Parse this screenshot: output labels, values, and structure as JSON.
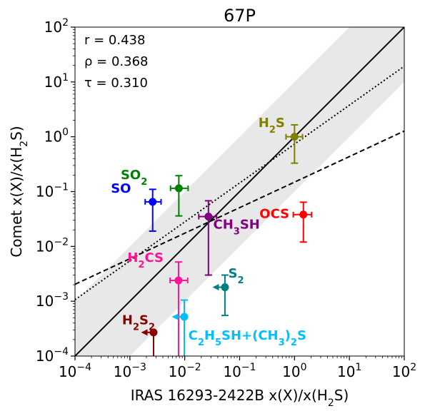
{
  "chart_data": {
    "type": "scatter",
    "title": "67P",
    "xlabel": {
      "pre": "IRAS 16293-2422B x(X)/x(H",
      "sub": "2",
      "post": "S)"
    },
    "ylabel": {
      "pre": "Comet x(X)/x(H",
      "sub": "2",
      "post": "S)"
    },
    "x_scale": "log",
    "y_scale": "log",
    "xlim": [
      0.0001,
      100
    ],
    "ylim": [
      0.0001,
      100
    ],
    "grid": false,
    "tick_labels": [
      {
        "base": "10",
        "exp": "−4",
        "value": 0.0001
      },
      {
        "base": "10",
        "exp": "−3",
        "value": 0.001
      },
      {
        "base": "10",
        "exp": "−2",
        "value": 0.01
      },
      {
        "base": "10",
        "exp": "−1",
        "value": 0.1
      },
      {
        "base": "10",
        "exp": "0",
        "value": 1
      },
      {
        "base": "10",
        "exp": "1",
        "value": 10
      },
      {
        "base": "10",
        "exp": "2",
        "value": 100
      }
    ],
    "stats": [
      "r = 0.438",
      "ρ = 0.368",
      "τ = 0.310"
    ],
    "band": {
      "factor": 10,
      "color": "#e8e8e8"
    },
    "lines": [
      {
        "style": "solid",
        "slope": 1,
        "intercept_log": 0
      },
      {
        "style": "dotted",
        "slope": 0.71,
        "intercept_log": -0.133
      },
      {
        "style": "dashed",
        "slope": 0.466,
        "intercept_log": -0.827
      }
    ],
    "points": [
      {
        "label": [
          [
            "H",
            false
          ],
          [
            "2",
            true
          ],
          [
            "S",
            false
          ]
        ],
        "color": "#808000",
        "x": 1.0,
        "y": 1.0,
        "xerr_lo": 0.7,
        "xerr_hi": 1.4,
        "yerr_lo": 0.33,
        "yerr_hi": 1.65,
        "upper_x": false,
        "lx": 0.22,
        "ly": 1.5
      },
      {
        "label": [
          [
            "SO",
            false
          ],
          [
            "2",
            true
          ]
        ],
        "color": "#008000",
        "x": 0.0078,
        "y": 0.115,
        "xerr_lo": 0.0055,
        "xerr_hi": 0.0115,
        "yerr_lo": 0.036,
        "yerr_hi": 0.195,
        "upper_x": false,
        "lx": 0.00068,
        "ly": 0.17
      },
      {
        "label": [
          [
            "SO",
            false
          ]
        ],
        "color": "#0000ff",
        "x": 0.0026,
        "y": 0.065,
        "xerr_lo": 0.0019,
        "xerr_hi": 0.0037,
        "yerr_lo": 0.019,
        "yerr_hi": 0.11,
        "upper_x": false,
        "lx": 0.00045,
        "ly": 0.095
      },
      {
        "label": [
          [
            "OCS",
            false
          ]
        ],
        "color": "#ff0000",
        "x": 1.45,
        "y": 0.038,
        "xerr_lo": 0.95,
        "xerr_hi": 2.05,
        "yerr_lo": 0.012,
        "yerr_hi": 0.064,
        "upper_x": false,
        "lx": 0.23,
        "ly": 0.033
      },
      {
        "label": [
          [
            "CH",
            false
          ],
          [
            "3",
            true
          ],
          [
            "SH",
            false
          ]
        ],
        "color": "#800080",
        "x": 0.027,
        "y": 0.035,
        "xerr_lo": 0.018,
        "xerr_hi": 0.038,
        "yerr_lo": 0.003,
        "yerr_hi": 0.068,
        "upper_x": false,
        "lx": 0.033,
        "ly": 0.021
      },
      {
        "label": [
          [
            "H",
            false
          ],
          [
            "2",
            true
          ],
          [
            "CS",
            false
          ]
        ],
        "color": "#ff1493",
        "x": 0.0077,
        "y": 0.0024,
        "xerr_lo": 0.0054,
        "xerr_hi": 0.0113,
        "yerr_lo": 0.0001,
        "yerr_hi": 0.0052,
        "upper_x": false,
        "lx": 0.0009,
        "ly": 0.0052
      },
      {
        "label": [
          [
            "S",
            false
          ],
          [
            "2",
            true
          ]
        ],
        "color": "#008080",
        "x": 0.054,
        "y": 0.0018,
        "xerr_lo": 0.032,
        "xerr_hi": 0.054,
        "yerr_lo": 0.00055,
        "yerr_hi": 0.003,
        "upper_x": true,
        "lx": 0.062,
        "ly": 0.0027
      },
      {
        "label": [
          [
            "H",
            false
          ],
          [
            "2",
            true
          ],
          [
            "S",
            false
          ],
          [
            "2",
            true
          ]
        ],
        "color": "#8b0000",
        "x": 0.0027,
        "y": 0.00027,
        "xerr_lo": 0.0016,
        "xerr_hi": 0.0027,
        "yerr_lo": 0.0001,
        "yerr_hi": 0.00027,
        "upper_x": true,
        "lx": 0.00072,
        "ly": 0.00038
      },
      {
        "label": [
          [
            "C",
            false
          ],
          [
            "2",
            true
          ],
          [
            "H",
            false
          ],
          [
            "5",
            true
          ],
          [
            "SH+(CH",
            false
          ],
          [
            "3",
            true
          ],
          [
            ")",
            false
          ],
          [
            "2",
            true
          ],
          [
            "S",
            false
          ]
        ],
        "color": "#00bfff",
        "x": 0.0098,
        "y": 0.00052,
        "xerr_lo": 0.0058,
        "xerr_hi": 0.0098,
        "yerr_lo": 0.0001,
        "yerr_hi": 0.00105,
        "upper_x": true,
        "lx": 0.0116,
        "ly": 0.0002
      }
    ]
  }
}
